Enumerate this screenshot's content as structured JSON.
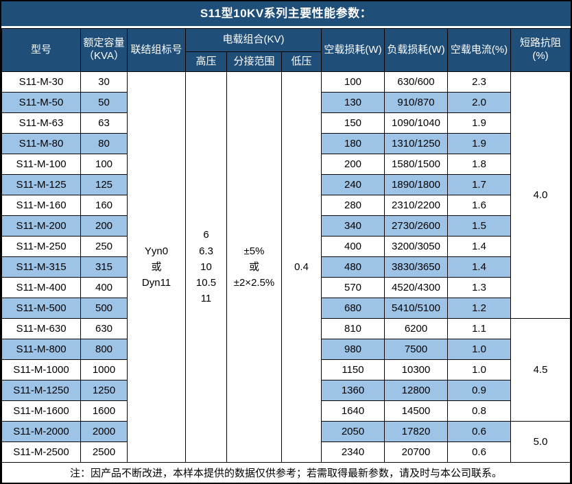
{
  "title": "S11型10KV系列主要性能参数：",
  "colors": {
    "header_bg": "#1F4E79",
    "header_text": "#FFFFFF",
    "stripe_bg": "#9DC3E6",
    "row_bg": "#FFFFFF",
    "border": "#000000"
  },
  "table": {
    "headers": {
      "model": "型号",
      "capacity": [
        "额定容量",
        "（KVA）"
      ],
      "connection": "联结组标号",
      "voltage_group": "电载组合(KV)",
      "hv": "高压",
      "tap_range": "分接范围",
      "lv": "低压",
      "no_load_loss": "空载损耗(W)",
      "load_loss": "负载损耗(W)",
      "no_load_current": "空载电流(%)",
      "impedance": "短路抗阻(%)"
    },
    "merged": {
      "connection": [
        "Yyn0",
        "或",
        "Dyn11"
      ],
      "hv": [
        "6",
        "6.3",
        "10",
        "10.5",
        "11"
      ],
      "tap_range": [
        "±5%",
        "或",
        "±2×2.5%"
      ],
      "lv": "0.4"
    },
    "rows": [
      {
        "model": "S11-M-30",
        "capacity": "30",
        "no_load_loss": "100",
        "load_loss": "630/600",
        "no_load_current": "2.3"
      },
      {
        "model": "S11-M-50",
        "capacity": "50",
        "no_load_loss": "130",
        "load_loss": "910/870",
        "no_load_current": "2.0"
      },
      {
        "model": "S11-M-63",
        "capacity": "63",
        "no_load_loss": "150",
        "load_loss": "1090/1040",
        "no_load_current": "1.9"
      },
      {
        "model": "S11-M-80",
        "capacity": "80",
        "no_load_loss": "180",
        "load_loss": "1310/1250",
        "no_load_current": "1.9"
      },
      {
        "model": "S11-M-100",
        "capacity": "100",
        "no_load_loss": "200",
        "load_loss": "1580/1500",
        "no_load_current": "1.8"
      },
      {
        "model": "S11-M-125",
        "capacity": "125",
        "no_load_loss": "240",
        "load_loss": "1890/1800",
        "no_load_current": "1.7"
      },
      {
        "model": "S11-M-160",
        "capacity": "160",
        "no_load_loss": "280",
        "load_loss": "2310/2200",
        "no_load_current": "1.6"
      },
      {
        "model": "S11-M-200",
        "capacity": "200",
        "no_load_loss": "340",
        "load_loss": "2730/2600",
        "no_load_current": "1.5"
      },
      {
        "model": "S11-M-250",
        "capacity": "250",
        "no_load_loss": "400",
        "load_loss": "3200/3050",
        "no_load_current": "1.4"
      },
      {
        "model": "S11-M-315",
        "capacity": "315",
        "no_load_loss": "480",
        "load_loss": "3830/3650",
        "no_load_current": "1.4"
      },
      {
        "model": "S11-M-400",
        "capacity": "400",
        "no_load_loss": "570",
        "load_loss": "4520/4300",
        "no_load_current": "1.3"
      },
      {
        "model": "S11-M-500",
        "capacity": "500",
        "no_load_loss": "680",
        "load_loss": "5410/5100",
        "no_load_current": "1.2"
      },
      {
        "model": "S11-M-630",
        "capacity": "630",
        "no_load_loss": "810",
        "load_loss": "6200",
        "no_load_current": "1.1"
      },
      {
        "model": "S11-M-800",
        "capacity": "800",
        "no_load_loss": "980",
        "load_loss": "7500",
        "no_load_current": "1.0"
      },
      {
        "model": "S11-M-1000",
        "capacity": "1000",
        "no_load_loss": "1150",
        "load_loss": "10300",
        "no_load_current": "1.0"
      },
      {
        "model": "S11-M-1250",
        "capacity": "1250",
        "no_load_loss": "1360",
        "load_loss": "12800",
        "no_load_current": "0.9"
      },
      {
        "model": "S11-M-1600",
        "capacity": "1600",
        "no_load_loss": "1640",
        "load_loss": "14500",
        "no_load_current": "0.8"
      },
      {
        "model": "S11-M-2000",
        "capacity": "2000",
        "no_load_loss": "2050",
        "load_loss": "17820",
        "no_load_current": "0.6"
      },
      {
        "model": "S11-M-2500",
        "capacity": "2500",
        "no_load_loss": "2340",
        "load_loss": "20700",
        "no_load_current": "0.6"
      }
    ],
    "impedance_groups": [
      {
        "value": "4.0",
        "rows": 12
      },
      {
        "value": "4.5",
        "rows": 5
      },
      {
        "value": "5.0",
        "rows": 2
      }
    ]
  },
  "footer": {
    "note": "注：因产品不断改进，本样本提供的数据仅供参考；若需取得最新参数，请及时与本公司联系。"
  }
}
